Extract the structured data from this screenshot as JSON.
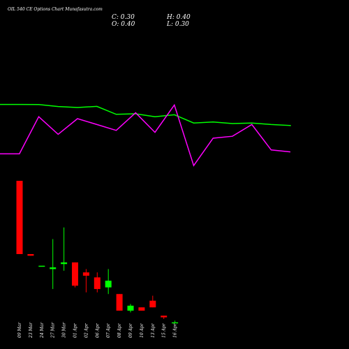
{
  "header": {
    "title": "OIL 540 CE Options Chart Munafasutra.com",
    "close_label": "C: 0.30",
    "high_label": "H: 0.40",
    "open_label": "O: 0.40",
    "low_label": "L: 0.30"
  },
  "chart_data": [
    {
      "type": "line",
      "series": [
        {
          "color": "#00ff00",
          "values": [
            0.73,
            0.73,
            0.72,
            0.62,
            0.57,
            0.63,
            0.22,
            0.25,
            0.1,
            0.2,
            -0.22,
            -0.17,
            -0.25,
            -0.22,
            -0.3,
            -0.35,
            -0.38
          ]
        },
        {
          "color": "#ff00ff",
          "values": [
            -1.8,
            -1.8,
            0.1,
            -0.8,
            0.0,
            -0.3,
            -0.6,
            0.3,
            -0.7,
            0.7,
            -2.4,
            -1.0,
            -0.9,
            -0.3,
            -1.6,
            -1.7
          ]
        }
      ]
    },
    {
      "type": "candlestick",
      "categories": [
        "09 Mar",
        "23 Mar",
        "24 Mar",
        "27 Mar",
        "30 Mar",
        "01 Apr",
        "02 Apr",
        "06 Apr",
        "07 Apr",
        "08 Apr",
        "09 Apr",
        "10 Apr",
        "13 Apr",
        "15 Apr",
        "16 Apr"
      ],
      "up_color": "#00ff00",
      "down_color": "#ff0000",
      "candles": [
        {
          "o": 6.2,
          "h": 6.2,
          "l": 4.0,
          "c": 4.0
        },
        {
          "o": 4.0,
          "h": 4.0,
          "l": 3.95,
          "c": 3.95
        },
        {
          "o": 3.65,
          "h": 3.65,
          "l": 3.65,
          "c": 3.65
        },
        {
          "o": 3.55,
          "h": 4.45,
          "l": 2.95,
          "c": 3.6
        },
        {
          "o": 3.7,
          "h": 4.8,
          "l": 3.5,
          "c": 3.75
        },
        {
          "o": 3.75,
          "h": 3.75,
          "l": 3.0,
          "c": 3.05
        },
        {
          "o": 3.45,
          "h": 3.55,
          "l": 2.85,
          "c": 3.35
        },
        {
          "o": 3.3,
          "h": 3.45,
          "l": 2.85,
          "c": 2.95
        },
        {
          "o": 3.0,
          "h": 3.55,
          "l": 2.8,
          "c": 3.2
        },
        {
          "o": 2.8,
          "h": 2.8,
          "l": 2.3,
          "c": 2.3
        },
        {
          "o": 2.3,
          "h": 2.5,
          "l": 2.25,
          "c": 2.45
        },
        {
          "o": 2.4,
          "h": 2.4,
          "l": 2.3,
          "c": 2.3
        },
        {
          "o": 2.6,
          "h": 2.75,
          "l": 2.4,
          "c": 2.4
        },
        {
          "o": 2.15,
          "h": 2.15,
          "l": 2.05,
          "c": 2.1
        },
        {
          "o": 1.95,
          "h": 2.0,
          "l": 1.95,
          "c": 1.95
        }
      ]
    }
  ]
}
